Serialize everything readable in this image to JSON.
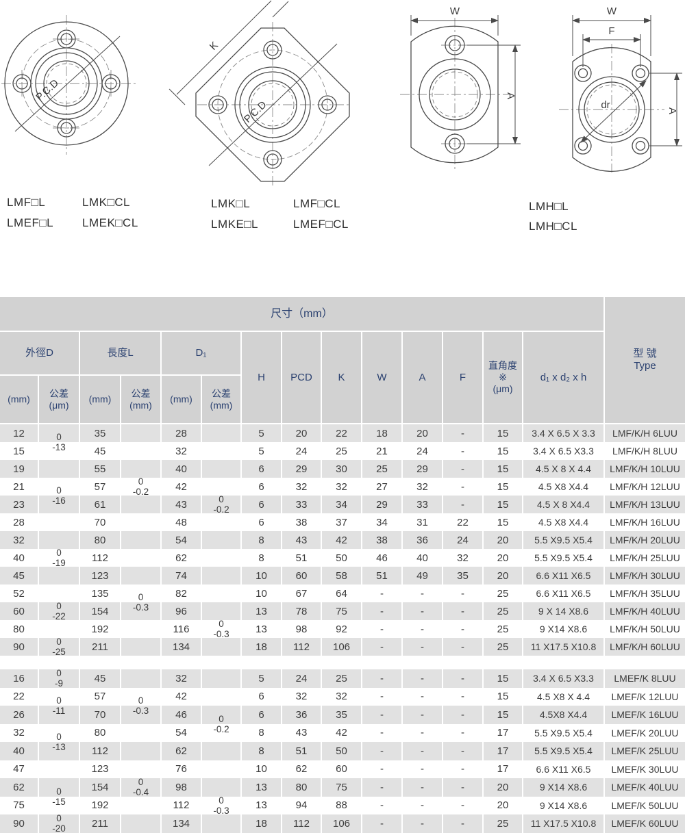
{
  "colors": {
    "header_bg": "#d2d2d2",
    "header_text": "#2b4170",
    "stripe": "#e1e1e1",
    "line_art": "#4a4a4a"
  },
  "drawings": {
    "dims": {
      "k": "K",
      "w": "W",
      "a": "A",
      "f": "F",
      "dr": "dr",
      "pcd": "P.C.D"
    },
    "model_groups": [
      {
        "labels": [
          "LMF□L",
          "LMK□CL",
          "LMEF□L",
          "LMEK□CL"
        ]
      },
      {
        "labels": [
          "LMK□L",
          "LMF□CL",
          "LMKE□L",
          "LMEF□CL"
        ]
      },
      {
        "labels": [
          "LMH□L",
          "LMH□CL"
        ]
      }
    ]
  },
  "table": {
    "title": "尺寸（mm）",
    "type_header": "型 號\nType",
    "groups": [
      {
        "label": "外徑D",
        "sub": [
          "(mm)",
          "公差\n(μm)"
        ]
      },
      {
        "label": "長度L",
        "sub": [
          "(mm)",
          "公差\n(mm)"
        ]
      },
      {
        "label": "D₁",
        "sub": [
          "(mm)",
          "公差\n(mm)"
        ]
      }
    ],
    "columns": [
      "H",
      "PCD",
      "K",
      "W",
      "A",
      "F",
      "直角度\n※\n(μm)",
      "d₁ x d₂ x h"
    ],
    "sections": [
      {
        "rows": [
          [
            "12",
            "",
            "35",
            "",
            "28",
            "",
            "5",
            "20",
            "22",
            "18",
            "20",
            "-",
            "15",
            "3.4 X 6.5 X 3.3",
            "LMF/K/H 6LUU"
          ],
          [
            "15",
            "",
            "45",
            "",
            "32",
            "",
            "5",
            "24",
            "25",
            "21",
            "24",
            "-",
            "15",
            "3.4 X 6.5 X3.3",
            "LMF/K/H 8LUU"
          ],
          [
            "19",
            "",
            "55",
            "",
            "40",
            "",
            "6",
            "29",
            "30",
            "25",
            "29",
            "-",
            "15",
            "4.5 X 8 X 4.4",
            "LMF/K/H 10LUU"
          ],
          [
            "21",
            "",
            "57",
            "",
            "42",
            "",
            "6",
            "32",
            "32",
            "27",
            "32",
            "-",
            "15",
            "4.5 X8 X4.4",
            "LMF/K/H 12LUU"
          ],
          [
            "23",
            "",
            "61",
            "",
            "43",
            "",
            "6",
            "33",
            "34",
            "29",
            "33",
            "-",
            "15",
            "4.5 X 8 X4.4",
            "LMF/K/H 13LUU"
          ],
          [
            "28",
            "",
            "70",
            "",
            "48",
            "",
            "6",
            "38",
            "37",
            "34",
            "31",
            "22",
            "15",
            "4.5 X8 X4.4",
            "LMF/K/H 16LUU"
          ],
          [
            "32",
            "",
            "80",
            "",
            "54",
            "",
            "8",
            "43",
            "42",
            "38",
            "36",
            "24",
            "20",
            "5.5 X9.5 X5.4",
            "LMF/K/H 20LUU"
          ],
          [
            "40",
            "",
            "112",
            "",
            "62",
            "",
            "8",
            "51",
            "50",
            "46",
            "40",
            "32",
            "20",
            "5.5 X9.5 X5.4",
            "LMF/K/H 25LUU"
          ],
          [
            "45",
            "",
            "123",
            "",
            "74",
            "",
            "10",
            "60",
            "58",
            "51",
            "49",
            "35",
            "20",
            "6.6 X11 X6.5",
            "LMF/K/H 30LUU"
          ],
          [
            "52",
            "",
            "135",
            "",
            "82",
            "",
            "10",
            "67",
            "64",
            "-",
            "-",
            "-",
            "25",
            "6.6 X11 X6.5",
            "LMF/K/H 35LUU"
          ],
          [
            "60",
            "",
            "154",
            "",
            "96",
            "",
            "13",
            "78",
            "75",
            "-",
            "-",
            "-",
            "25",
            "9 X 14 X8.6",
            "LMF/K/H 40LUU"
          ],
          [
            "80",
            "",
            "192",
            "",
            "116",
            "",
            "13",
            "98",
            "92",
            "-",
            "-",
            "-",
            "25",
            "9 X14 X8.6",
            "LMF/K/H 50LUU"
          ],
          [
            "90",
            "",
            "211",
            "",
            "134",
            "",
            "18",
            "112",
            "106",
            "-",
            "-",
            "-",
            "25",
            "11 X17.5 X10.8",
            "LMF/K/H 60LUU"
          ]
        ],
        "tolerances": [
          {
            "col": 1,
            "start": 0,
            "end": 1,
            "text": "0\n-13"
          },
          {
            "col": 1,
            "start": 2,
            "end": 5,
            "text": "0\n-16"
          },
          {
            "col": 1,
            "start": 6,
            "end": 8,
            "text": "0\n-19"
          },
          {
            "col": 1,
            "start": 9,
            "end": 11,
            "text": "0\n-22"
          },
          {
            "col": 1,
            "start": 12,
            "end": 12,
            "text": "0\n-25"
          },
          {
            "col": 3,
            "start": 1,
            "end": 5,
            "text": "0\n-0.2"
          },
          {
            "col": 3,
            "start": 7,
            "end": 12,
            "text": "0\n-0.3"
          },
          {
            "col": 5,
            "start": 3,
            "end": 5,
            "text": "0\n-0.2"
          },
          {
            "col": 5,
            "start": 10,
            "end": 12,
            "text": "0\n-0.3"
          }
        ]
      },
      {
        "rows": [
          [
            "16",
            "",
            "45",
            "",
            "32",
            "",
            "5",
            "24",
            "25",
            "-",
            "-",
            "-",
            "15",
            "3.4 X 6.5 X3.3",
            "LMEF/K 8LUU"
          ],
          [
            "22",
            "",
            "57",
            "",
            "42",
            "",
            "6",
            "32",
            "32",
            "-",
            "-",
            "-",
            "15",
            "4.5 X8 X 4.4",
            "LMEF/K 12LUU"
          ],
          [
            "26",
            "",
            "70",
            "",
            "46",
            "",
            "6",
            "36",
            "35",
            "-",
            "-",
            "-",
            "15",
            "4.5X8 X4.4",
            "LMEF/K 16LUU"
          ],
          [
            "32",
            "",
            "80",
            "",
            "54",
            "",
            "8",
            "43",
            "42",
            "-",
            "-",
            "-",
            "17",
            "5.5 X9.5 X5.4",
            "LMEF/K 20LUU"
          ],
          [
            "40",
            "",
            "112",
            "",
            "62",
            "",
            "8",
            "51",
            "50",
            "-",
            "-",
            "-",
            "17",
            "5.5 X9.5 X5.4",
            "LMEF/K 25LUU"
          ],
          [
            "47",
            "",
            "123",
            "",
            "76",
            "",
            "10",
            "62",
            "60",
            "-",
            "-",
            "-",
            "17",
            "6.6 X11 X6.5",
            "LMEF/K 30LUU"
          ],
          [
            "62",
            "",
            "154",
            "",
            "98",
            "",
            "13",
            "80",
            "75",
            "-",
            "-",
            "-",
            "20",
            "9 X14 X8.6",
            "LMEF/K 40LUU"
          ],
          [
            "75",
            "",
            "192",
            "",
            "112",
            "",
            "13",
            "94",
            "88",
            "-",
            "-",
            "-",
            "20",
            "9 X14 X8.6",
            "LMEF/K 50LUU"
          ],
          [
            "90",
            "",
            "211",
            "",
            "134",
            "",
            "18",
            "112",
            "106",
            "-",
            "-",
            "-",
            "25",
            "11 X17.5 X10.8",
            "LMEF/K 60LUU"
          ]
        ],
        "tolerances": [
          {
            "col": 1,
            "start": 0,
            "end": 0,
            "text": "0\n-9"
          },
          {
            "col": 1,
            "start": 1,
            "end": 2,
            "text": "0\n-11"
          },
          {
            "col": 1,
            "start": 3,
            "end": 4,
            "text": "0\n-13"
          },
          {
            "col": 1,
            "start": 6,
            "end": 7,
            "text": "0\n-15"
          },
          {
            "col": 1,
            "start": 8,
            "end": 8,
            "text": "0\n-20"
          },
          {
            "col": 3,
            "start": 0,
            "end": 3,
            "text": "0\n-0.3"
          },
          {
            "col": 3,
            "start": 4,
            "end": 8,
            "text": "0\n-0.4"
          },
          {
            "col": 5,
            "start": 0,
            "end": 5,
            "text": "0\n-0.2"
          },
          {
            "col": 5,
            "start": 6,
            "end": 8,
            "text": "0\n-0.3"
          }
        ]
      }
    ]
  }
}
